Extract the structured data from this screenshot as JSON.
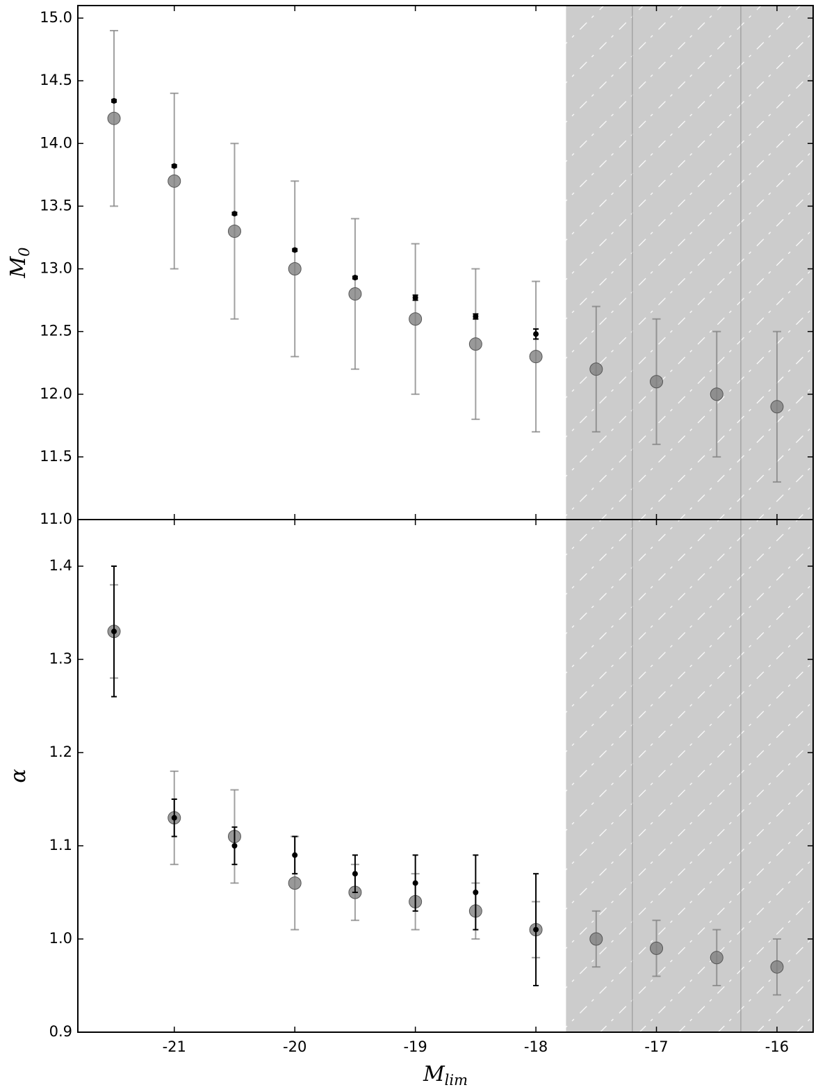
{
  "chart_data": [
    {
      "type": "scatter",
      "ylabel": {
        "text": "M",
        "subscript": "0"
      },
      "xlim": [
        -21.8,
        -15.7
      ],
      "ylim": [
        11,
        15.1
      ],
      "xticks": [
        -21,
        -20,
        -19,
        -18,
        -17,
        -16
      ],
      "show_xtick_labels": false,
      "yticks": [
        {
          "value": 11,
          "label": "11.0"
        },
        11.5,
        {
          "value": 12,
          "label": "12.0"
        },
        12.5,
        {
          "value": 13,
          "label": "13.0"
        },
        13.5,
        {
          "value": 14,
          "label": "14.0"
        },
        14.5,
        {
          "value": 15,
          "label": "15.0"
        }
      ],
      "shaded_xrange": [
        -17.75,
        -15.7
      ],
      "shade_color": "#cccccc",
      "vlines": [
        -17.2,
        -16.3
      ],
      "series": [
        {
          "color": "#808080",
          "marker": "large",
          "x": [
            -21.5,
            -21,
            -20.5,
            -20,
            -19.5,
            -19,
            -18.5,
            -18,
            -17.5,
            -17,
            -16.5,
            -16
          ],
          "values": [
            14.2,
            13.7,
            13.3,
            13.0,
            12.8,
            12.6,
            12.4,
            12.3,
            12.2,
            12.1,
            12.0,
            11.9
          ],
          "errors": [
            0.7,
            0.7,
            0.7,
            0.7,
            0.6,
            0.6,
            0.6,
            0.6,
            0.5,
            0.5,
            0.5,
            0.6
          ]
        },
        {
          "color": "#000000",
          "marker": "small",
          "x": [
            -21.5,
            -21,
            -20.5,
            -20,
            -19.5,
            -19,
            -18.5,
            -18
          ],
          "values": [
            14.34,
            13.82,
            13.44,
            13.15,
            12.93,
            12.77,
            12.62,
            12.48
          ],
          "errors": [
            0.01,
            0.01,
            0.01,
            0.01,
            0.01,
            0.02,
            0.02,
            0.04
          ]
        }
      ]
    },
    {
      "type": "scatter",
      "ylabel": {
        "text": "α"
      },
      "xlabel": {
        "text": "M",
        "subscript": "lim"
      },
      "xlim": [
        -21.8,
        -15.7
      ],
      "ylim": [
        0.9,
        1.45
      ],
      "xticks": [
        -21,
        -20,
        -19,
        -18,
        -17,
        -16
      ],
      "show_xtick_labels": true,
      "yticks": [
        0.9,
        {
          "value": 1,
          "label": "1.0"
        },
        1.1,
        1.2,
        1.3,
        1.4
      ],
      "shaded_xrange": [
        -17.75,
        -15.7
      ],
      "shade_color": "#cccccc",
      "vlines": [
        -17.2,
        -16.3
      ],
      "series": [
        {
          "color": "#808080",
          "marker": "large",
          "x": [
            -21.5,
            -21,
            -20.5,
            -20,
            -19.5,
            -19,
            -18.5,
            -18,
            -17.5,
            -17,
            -16.5,
            -16
          ],
          "values": [
            1.33,
            1.13,
            1.11,
            1.06,
            1.05,
            1.04,
            1.03,
            1.01,
            1.0,
            0.99,
            0.98,
            0.97
          ],
          "errors": [
            0.05,
            0.05,
            0.05,
            0.05,
            0.03,
            0.03,
            0.03,
            0.03,
            0.03,
            0.03,
            0.03,
            0.03
          ]
        },
        {
          "color": "#000000",
          "marker": "small",
          "x": [
            -21.5,
            -21,
            -20.5,
            -20,
            -19.5,
            -19,
            -18.5,
            -18
          ],
          "values": [
            1.33,
            1.13,
            1.1,
            1.09,
            1.07,
            1.06,
            1.05,
            1.01
          ],
          "errors": [
            0.07,
            0.02,
            0.02,
            0.02,
            0.02,
            0.03,
            0.04,
            0.06
          ]
        }
      ]
    }
  ]
}
